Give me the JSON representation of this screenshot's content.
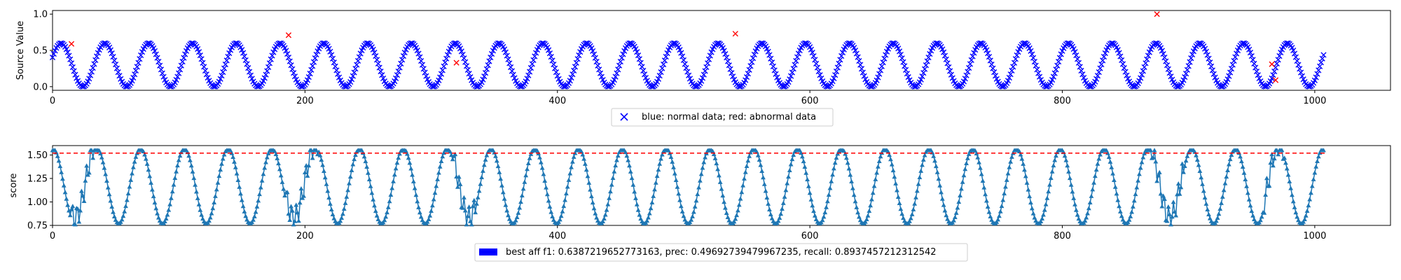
{
  "chart_data": [
    {
      "type": "scatter",
      "title": "",
      "xlabel": "",
      "ylabel": "Source Value",
      "xlim": [
        0,
        1060
      ],
      "ylim": [
        -0.05,
        1.05
      ],
      "xticks": [
        "0",
        "200",
        "400",
        "600",
        "800",
        "1000"
      ],
      "xtick_values": [
        0,
        200,
        400,
        600,
        800,
        1000
      ],
      "yticks": [
        "0.0",
        "0.5",
        "1.0"
      ],
      "ytick_values": [
        0.0,
        0.5,
        1.0
      ],
      "grid": false,
      "legend": {
        "text": "blue: normal data; red: abnormal data",
        "placement": "bottom-center",
        "marker_color": "#0000ff"
      },
      "series": [
        {
          "marker": "x",
          "color": "#0000ff",
          "n_points": 1008,
          "generator": {
            "kind": "sine",
            "period": 34.7,
            "center": 0.3,
            "amplitude": 0.3,
            "phase_at_x0": 0.35
          }
        },
        {
          "marker": "x",
          "color": "#ff0000",
          "x": [
            15,
            187,
            320,
            541,
            875,
            966,
            969
          ],
          "y": [
            0.59,
            0.71,
            0.33,
            0.73,
            1.0,
            0.31,
            0.09
          ]
        }
      ]
    },
    {
      "type": "line",
      "title": "",
      "xlabel": "",
      "ylabel": "score",
      "xlim": [
        0,
        1060
      ],
      "ylim": [
        0.75,
        1.6
      ],
      "xticks": [
        "0",
        "200",
        "400",
        "600",
        "800",
        "1000"
      ],
      "xtick_values": [
        0,
        200,
        400,
        600,
        800,
        1000
      ],
      "yticks": [
        "0.75",
        "1.00",
        "1.25",
        "1.50"
      ],
      "ytick_values": [
        0.75,
        1.0,
        1.25,
        1.5
      ],
      "grid": false,
      "threshold": {
        "value": 1.52,
        "color": "#ff0000",
        "style": "dashed"
      },
      "legend": {
        "text": "best aff f1: 0.6387219652773163, prec: 0.49692739479967235, recall: 0.8937457212312542",
        "placement": "bottom-center",
        "swatch_color": "#0000ff"
      },
      "series": [
        {
          "marker": "triangle-up",
          "color": "#1f77b4",
          "n_points": 1008,
          "generator": {
            "kind": "sine-clipped",
            "period": 34.7,
            "center": 1.17,
            "amplitude": 0.4,
            "clip_max": 1.55,
            "phase_at_x0": 1.5
          },
          "anomaly_windows": [
            [
              15,
              35
            ],
            [
              185,
              210
            ],
            [
              318,
              335
            ],
            [
              870,
              895
            ],
            [
              960,
              975
            ]
          ]
        }
      ]
    }
  ]
}
